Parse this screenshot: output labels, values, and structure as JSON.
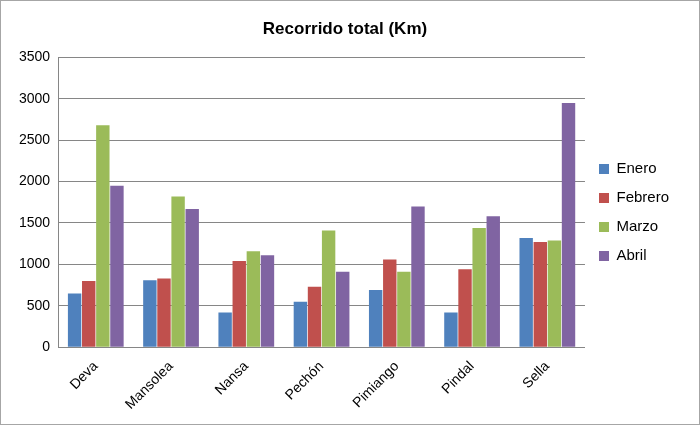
{
  "chart_data": {
    "type": "bar",
    "title": "Recorrido total (Km)",
    "categories": [
      "Deva",
      "Mansolea",
      "Nansa",
      "Pechón",
      "Pimiango",
      "Pindal",
      "Sella"
    ],
    "series": [
      {
        "name": "Enero",
        "color": "#4f81bd",
        "values": [
          650,
          810,
          420,
          550,
          690,
          420,
          1320
        ]
      },
      {
        "name": "Febrero",
        "color": "#c0504d",
        "values": [
          800,
          830,
          1040,
          730,
          1060,
          940,
          1270
        ]
      },
      {
        "name": "Marzo",
        "color": "#9bbb59",
        "values": [
          2680,
          1820,
          1160,
          1410,
          910,
          1440,
          1290
        ]
      },
      {
        "name": "Abril",
        "color": "#8064a2",
        "values": [
          1950,
          1670,
          1110,
          910,
          1700,
          1580,
          2950
        ]
      }
    ],
    "ylim": [
      0,
      3500
    ],
    "yticks": [
      0,
      500,
      1000,
      1500,
      2000,
      2500,
      3000,
      3500
    ],
    "grid": true,
    "legend": "right"
  }
}
